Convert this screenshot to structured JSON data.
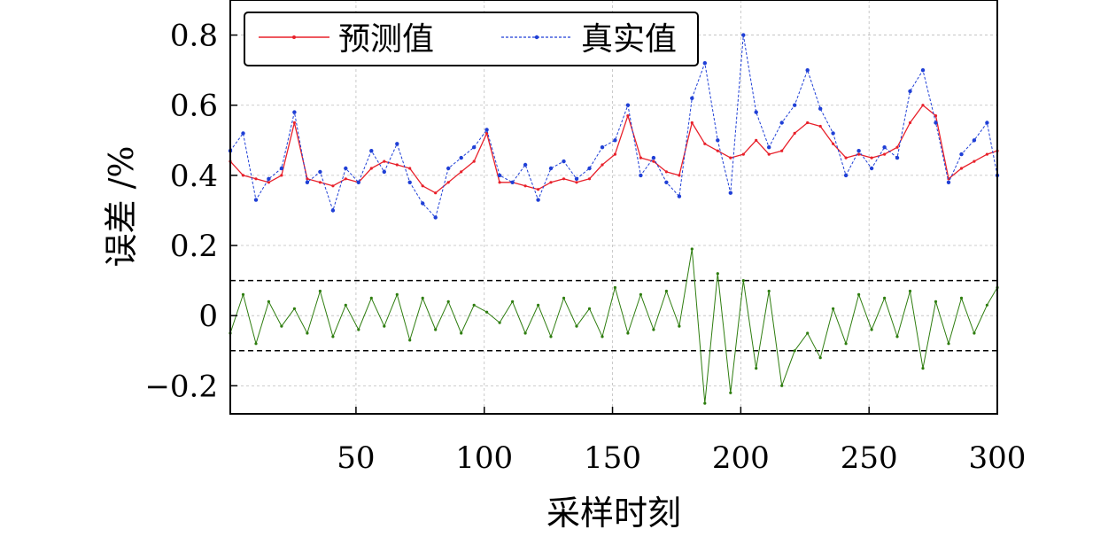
{
  "chart_data": {
    "type": "line",
    "title": "",
    "xlabel": "采样时刻",
    "ylabel": "误差 /%",
    "xlim": [
      1,
      300
    ],
    "ylim": [
      -0.28,
      0.9
    ],
    "grid": true,
    "legend": {
      "placement": "top-left",
      "entries": [
        "预测值",
        "真实值"
      ]
    },
    "x_ticks": [
      50,
      100,
      150,
      200,
      250,
      300
    ],
    "y_ticks": [
      -0.2,
      0,
      0.2,
      0.4,
      0.6,
      0.8
    ],
    "y_tick_labels": [
      "−0.2",
      "0",
      "0.2",
      "0.4",
      "0.6",
      "0.8"
    ],
    "reference_lines": [
      0.1,
      -0.1
    ],
    "x": [
      1,
      6,
      11,
      16,
      21,
      26,
      31,
      36,
      41,
      46,
      51,
      56,
      61,
      66,
      71,
      76,
      81,
      86,
      91,
      96,
      101,
      106,
      111,
      116,
      121,
      126,
      131,
      136,
      141,
      146,
      151,
      156,
      161,
      166,
      171,
      176,
      181,
      186,
      191,
      196,
      201,
      206,
      211,
      216,
      221,
      226,
      231,
      236,
      241,
      246,
      251,
      256,
      261,
      266,
      271,
      276,
      281,
      286,
      291,
      296,
      300
    ],
    "series": [
      {
        "name": "预测值",
        "color": "#e8202a",
        "values": [
          0.44,
          0.4,
          0.39,
          0.38,
          0.4,
          0.55,
          0.39,
          0.38,
          0.37,
          0.39,
          0.38,
          0.42,
          0.44,
          0.43,
          0.42,
          0.37,
          0.35,
          0.38,
          0.41,
          0.44,
          0.52,
          0.38,
          0.38,
          0.37,
          0.36,
          0.38,
          0.39,
          0.38,
          0.39,
          0.43,
          0.46,
          0.57,
          0.45,
          0.44,
          0.41,
          0.4,
          0.55,
          0.49,
          0.47,
          0.45,
          0.46,
          0.5,
          0.46,
          0.47,
          0.52,
          0.55,
          0.54,
          0.49,
          0.45,
          0.46,
          0.45,
          0.46,
          0.48,
          0.55,
          0.6,
          0.57,
          0.39,
          0.42,
          0.44,
          0.46,
          0.47
        ]
      },
      {
        "name": "真实值",
        "color": "#1f3fd6",
        "values": [
          0.47,
          0.52,
          0.33,
          0.39,
          0.42,
          0.58,
          0.38,
          0.41,
          0.3,
          0.42,
          0.38,
          0.47,
          0.41,
          0.49,
          0.38,
          0.32,
          0.28,
          0.42,
          0.45,
          0.48,
          0.53,
          0.4,
          0.38,
          0.43,
          0.33,
          0.42,
          0.44,
          0.39,
          0.42,
          0.48,
          0.5,
          0.6,
          0.4,
          0.45,
          0.38,
          0.34,
          0.62,
          0.72,
          0.5,
          0.35,
          0.8,
          0.58,
          0.48,
          0.55,
          0.6,
          0.7,
          0.59,
          0.52,
          0.4,
          0.47,
          0.42,
          0.48,
          0.45,
          0.64,
          0.7,
          0.55,
          0.38,
          0.46,
          0.5,
          0.55,
          0.4
        ]
      },
      {
        "name": "",
        "color": "#2e7d0f",
        "values": [
          -0.05,
          0.06,
          -0.08,
          0.04,
          -0.03,
          0.02,
          -0.05,
          0.07,
          -0.06,
          0.03,
          -0.04,
          0.05,
          -0.03,
          0.06,
          -0.07,
          0.05,
          -0.04,
          0.04,
          -0.05,
          0.03,
          0.01,
          -0.02,
          0.04,
          -0.05,
          0.03,
          -0.06,
          0.05,
          -0.03,
          0.02,
          -0.06,
          0.08,
          -0.05,
          0.06,
          -0.04,
          0.07,
          -0.03,
          0.19,
          -0.25,
          0.12,
          -0.22,
          0.1,
          -0.15,
          0.07,
          -0.2,
          -0.1,
          -0.05,
          -0.12,
          0.02,
          -0.08,
          0.06,
          -0.04,
          0.05,
          -0.06,
          0.07,
          -0.15,
          0.04,
          -0.08,
          0.05,
          -0.05,
          0.03,
          0.08
        ]
      }
    ]
  }
}
